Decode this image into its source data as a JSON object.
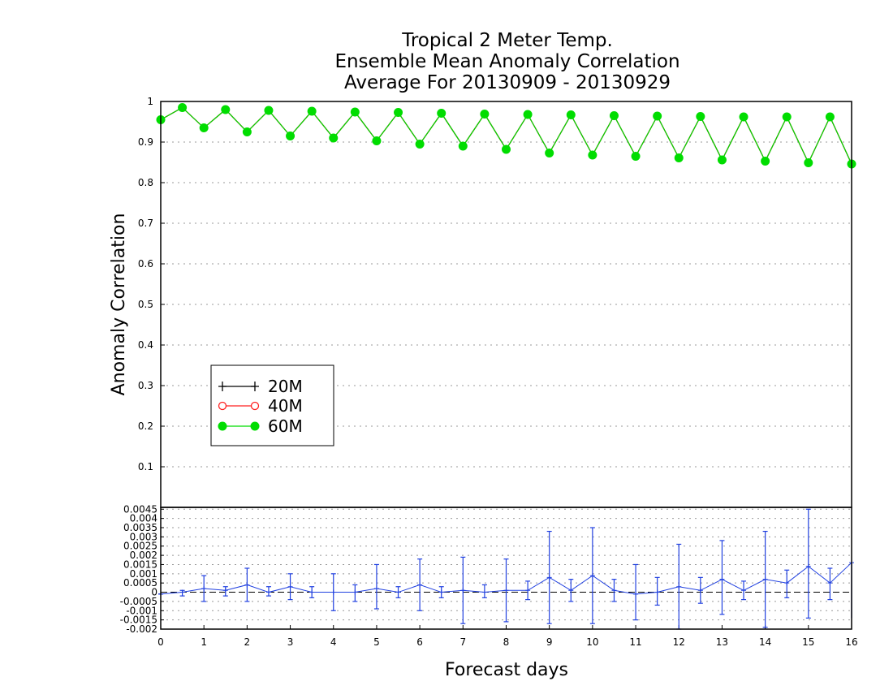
{
  "chart_data": [
    {
      "type": "line",
      "title": [
        "Tropical 2 Meter Temp.",
        "Ensemble Mean Anomaly Correlation",
        "Average For 20130909 - 20130929"
      ],
      "xlabel": "Forecast days",
      "ylabel": "Anomaly Correlation",
      "xlim": [
        0,
        16
      ],
      "ylim": [
        0,
        1
      ],
      "yticks": [
        "0.1",
        "0.2",
        "0.3",
        "0.4",
        "0.5",
        "0.6",
        "0.7",
        "0.8",
        "0.9",
        "1"
      ],
      "xticks": [
        "0",
        "1",
        "2",
        "3",
        "4",
        "5",
        "6",
        "7",
        "8",
        "9",
        "10",
        "11",
        "12",
        "13",
        "14",
        "15",
        "16"
      ],
      "grid": true,
      "legend_placement": "lower-left",
      "x": [
        0,
        0.5,
        1,
        1.5,
        2,
        2.5,
        3,
        3.5,
        4,
        4.5,
        5,
        5.5,
        6,
        6.5,
        7,
        7.5,
        8,
        8.5,
        9,
        9.5,
        10,
        10.5,
        11,
        11.5,
        12,
        12.5,
        13,
        13.5,
        14,
        14.5,
        15,
        15.5,
        16
      ],
      "series": [
        {
          "name": "20M",
          "color": "#000000",
          "marker": "plus",
          "values": [
            0.955,
            0.985,
            0.935,
            0.98,
            0.925,
            0.978,
            0.915,
            0.976,
            0.91,
            0.974,
            0.903,
            0.973,
            0.895,
            0.971,
            0.89,
            0.969,
            0.882,
            0.968,
            0.873,
            0.967,
            0.868,
            0.965,
            0.865,
            0.964,
            0.861,
            0.963,
            0.856,
            0.962,
            0.853,
            0.962,
            0.849,
            0.962,
            0.846
          ]
        },
        {
          "name": "40M",
          "color": "#ff2020",
          "marker": "open-circle",
          "values": [
            0.955,
            0.985,
            0.935,
            0.98,
            0.925,
            0.978,
            0.915,
            0.976,
            0.91,
            0.974,
            0.903,
            0.973,
            0.895,
            0.971,
            0.89,
            0.969,
            0.882,
            0.968,
            0.873,
            0.967,
            0.868,
            0.965,
            0.865,
            0.964,
            0.861,
            0.963,
            0.856,
            0.962,
            0.853,
            0.962,
            0.849,
            0.962,
            0.846
          ]
        },
        {
          "name": "60M",
          "color": "#00dd00",
          "marker": "filled-circle",
          "values": [
            0.955,
            0.985,
            0.935,
            0.98,
            0.925,
            0.978,
            0.915,
            0.976,
            0.91,
            0.974,
            0.903,
            0.973,
            0.895,
            0.971,
            0.89,
            0.969,
            0.882,
            0.968,
            0.873,
            0.967,
            0.868,
            0.965,
            0.865,
            0.964,
            0.861,
            0.963,
            0.856,
            0.962,
            0.853,
            0.962,
            0.849,
            0.962,
            0.846
          ]
        }
      ]
    },
    {
      "type": "line",
      "xlim": [
        0,
        16
      ],
      "ylim": [
        -0.002,
        0.0046
      ],
      "yticks": [
        "-0.002",
        "-0.0015",
        "-0.001",
        "-0.0005",
        "0",
        "0.0005",
        "0.001",
        "0.0015",
        "0.002",
        "0.0025",
        "0.003",
        "0.0035",
        "0.004",
        "0.0045"
      ],
      "grid": true,
      "x": [
        0,
        0.5,
        1,
        1.5,
        2,
        2.5,
        3,
        3.5,
        4,
        4.5,
        5,
        5.5,
        6,
        6.5,
        7,
        7.5,
        8,
        8.5,
        9,
        9.5,
        10,
        10.5,
        11,
        11.5,
        12,
        12.5,
        13,
        13.5,
        14,
        14.5,
        15,
        15.5,
        16
      ],
      "series": [
        {
          "color": "#2040e0",
          "values": [
            -0.0001,
            0,
            0.0002,
            0.0001,
            0.0004,
            0,
            0.0003,
            0,
            0,
            0,
            0.0002,
            0,
            0.0004,
            0,
            0.0001,
            0,
            0.0001,
            0.0001,
            0.0008,
            0.0001,
            0.0009,
            0.0001,
            -0.0001,
            0,
            0.0003,
            0.0001,
            0.0007,
            0.0001,
            0.0007,
            0.0005,
            0.0014,
            0.0005,
            0.0016
          ],
          "low": [
            -0.0001,
            -0.0002,
            -0.0005,
            -0.0002,
            -0.0005,
            -0.0002,
            -0.0004,
            -0.0003,
            -0.001,
            -0.0005,
            -0.0009,
            -0.0003,
            -0.001,
            -0.0003,
            -0.0017,
            -0.0003,
            -0.0016,
            -0.0004,
            -0.0017,
            -0.0005,
            -0.0017,
            -0.0005,
            -0.0015,
            -0.0007,
            -0.0021,
            -0.0006,
            -0.0012,
            -0.0004,
            -0.0019,
            -0.0003,
            -0.0014,
            -0.0004,
            -0.0014
          ],
          "high": [
            -0.0001,
            0.0001,
            0.0009,
            0.0003,
            0.0013,
            0.0003,
            0.001,
            0.0003,
            0.001,
            0.0004,
            0.0015,
            0.0003,
            0.0018,
            0.0003,
            0.0019,
            0.0004,
            0.0018,
            0.0006,
            0.0033,
            0.0007,
            0.0035,
            0.0007,
            0.0015,
            0.0008,
            0.0026,
            0.0008,
            0.0028,
            0.0006,
            0.0033,
            0.0012,
            0.0045,
            0.0013,
            0.0016
          ]
        }
      ]
    }
  ]
}
